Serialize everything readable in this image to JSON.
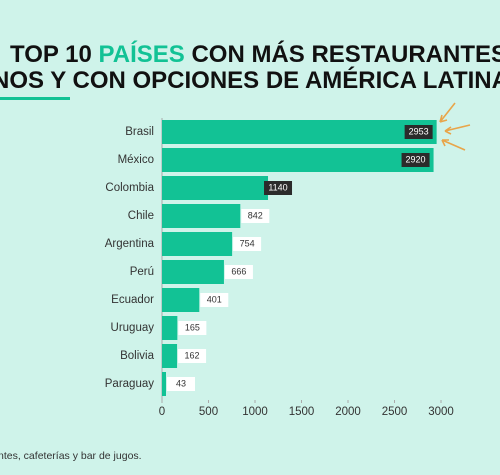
{
  "chart_data": {
    "type": "bar",
    "orientation": "horizontal",
    "title_start": "TOP 10",
    "title_highlight": "PAÍSES",
    "title_end": "CON MÁS RESTAURANTES",
    "title_line2": "NOS Y CON OPCIONES DE AMÉRICA LATINA",
    "footnote": "ntes, cafeterías y bar de jugos.",
    "categories": [
      "Brasil",
      "México",
      "Colombia",
      "Chile",
      "Argentina",
      "Perú",
      "Ecuador",
      "Uruguay",
      "Bolivia",
      "Paraguay"
    ],
    "values": [
      2953,
      2920,
      1140,
      842,
      754,
      666,
      401,
      165,
      162,
      43
    ],
    "color": "#12c295",
    "xlim": [
      0,
      3000
    ],
    "xticks": [
      0,
      500,
      1000,
      1500,
      2000,
      2500,
      3000
    ],
    "grid": false
  }
}
